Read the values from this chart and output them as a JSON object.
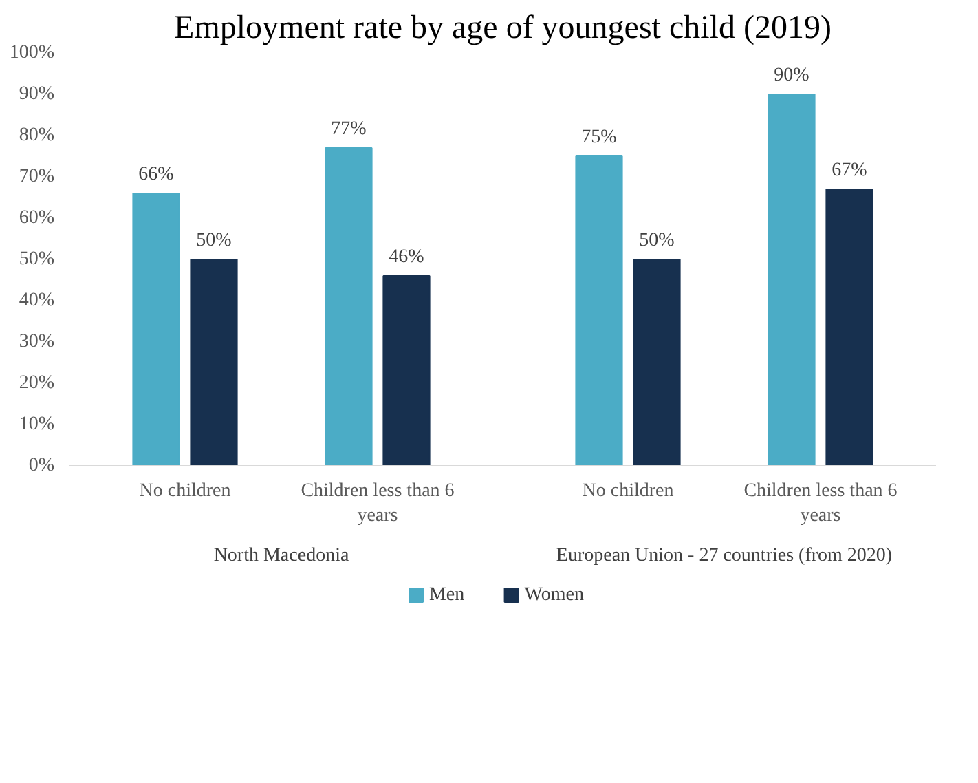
{
  "chart_data": {
    "type": "bar",
    "title": "Employment rate by age of youngest child (2019)",
    "categories": [
      "No children",
      "Children less than 6 years",
      "No children",
      "Children less than 6 years"
    ],
    "annotations": [
      "North Macedonia",
      "European Union - 27 countries (from 2020)"
    ],
    "series": [
      {
        "name": "Men",
        "color": "#4bacc6",
        "values": [
          66,
          77,
          75,
          90
        ]
      },
      {
        "name": "Women",
        "color": "#17304f",
        "values": [
          50,
          46,
          50,
          67
        ]
      }
    ],
    "ylim": [
      0,
      100
    ],
    "yticks": [
      {
        "value": 0,
        "label": "0%"
      },
      {
        "value": 10,
        "label": "10%"
      },
      {
        "value": 20,
        "label": "20%"
      },
      {
        "value": 30,
        "label": "30%"
      },
      {
        "value": 40,
        "label": "40%"
      },
      {
        "value": 50,
        "label": "50%"
      },
      {
        "value": 60,
        "label": "60%"
      },
      {
        "value": 70,
        "label": "70%"
      },
      {
        "value": 80,
        "label": "80%"
      },
      {
        "value": 90,
        "label": "90%"
      },
      {
        "value": 100,
        "label": "100%"
      }
    ],
    "value_labels": [
      [
        "66%",
        "77%",
        "75%",
        "90%"
      ],
      [
        "50%",
        "46%",
        "50%",
        "67%"
      ]
    ],
    "grid": false,
    "legend": "bottom"
  }
}
